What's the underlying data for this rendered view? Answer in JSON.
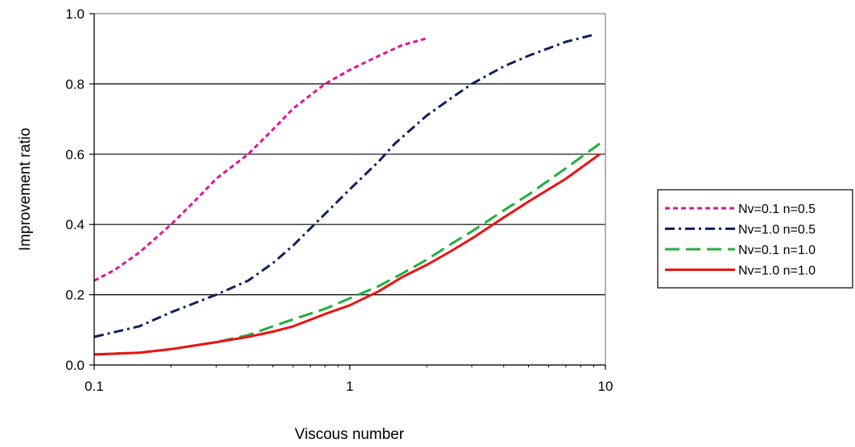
{
  "chart_data": {
    "type": "line",
    "xlabel": "Viscous number",
    "ylabel": "Improvement  ratio",
    "xscale": "log",
    "xlim": [
      0.1,
      10
    ],
    "ylim": [
      0,
      1.0
    ],
    "xticks": [
      "0.1",
      "1",
      "10"
    ],
    "yticks": [
      "0.0",
      "0.2",
      "0.4",
      "0.6",
      "0.8",
      "1.0"
    ],
    "grid": "horizontal",
    "legend": "right",
    "series": [
      {
        "name": "Nv=0.1 n=0.5",
        "color": "#e0139b",
        "dash": "short-dash",
        "x": [
          0.1,
          0.12,
          0.15,
          0.2,
          0.25,
          0.3,
          0.4,
          0.5,
          0.6,
          0.8,
          1.0,
          1.3,
          1.6,
          2.0
        ],
        "y": [
          0.24,
          0.27,
          0.32,
          0.4,
          0.47,
          0.53,
          0.6,
          0.67,
          0.73,
          0.8,
          0.84,
          0.88,
          0.91,
          0.93
        ]
      },
      {
        "name": "Nv=1.0 n=0.5",
        "color": "#0f2060",
        "dash": "dash-dot",
        "x": [
          0.1,
          0.15,
          0.2,
          0.3,
          0.4,
          0.5,
          0.6,
          0.8,
          1.0,
          1.3,
          1.5,
          2.0,
          2.5,
          3.0,
          4.0,
          5.0,
          7.0,
          9.0
        ],
        "y": [
          0.08,
          0.11,
          0.15,
          0.2,
          0.24,
          0.29,
          0.34,
          0.43,
          0.5,
          0.58,
          0.63,
          0.71,
          0.76,
          0.8,
          0.85,
          0.88,
          0.92,
          0.94
        ]
      },
      {
        "name": "Nv=0.1 n=1.0",
        "color": "#1fae3e",
        "dash": "long-dash",
        "x": [
          0.1,
          0.15,
          0.2,
          0.3,
          0.4,
          0.5,
          0.6,
          0.8,
          1.0,
          1.3,
          1.6,
          2.0,
          2.5,
          3.0,
          4.0,
          5.0,
          7.0,
          9.5
        ],
        "y": [
          0.03,
          0.035,
          0.045,
          0.065,
          0.085,
          0.11,
          0.13,
          0.16,
          0.19,
          0.225,
          0.26,
          0.3,
          0.345,
          0.38,
          0.44,
          0.485,
          0.56,
          0.63
        ]
      },
      {
        "name": "Nv=1.0 n=1.0",
        "color": "#ee1111",
        "dash": "solid",
        "x": [
          0.1,
          0.15,
          0.2,
          0.3,
          0.4,
          0.5,
          0.6,
          0.8,
          1.0,
          1.3,
          1.6,
          2.0,
          2.5,
          3.0,
          4.0,
          5.0,
          7.0,
          9.5
        ],
        "y": [
          0.03,
          0.035,
          0.045,
          0.065,
          0.08,
          0.095,
          0.11,
          0.145,
          0.17,
          0.21,
          0.25,
          0.285,
          0.325,
          0.36,
          0.42,
          0.465,
          0.53,
          0.6
        ]
      }
    ]
  }
}
